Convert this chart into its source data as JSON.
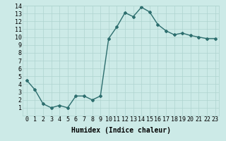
{
  "x": [
    0,
    1,
    2,
    3,
    4,
    5,
    6,
    7,
    8,
    9,
    10,
    11,
    12,
    13,
    14,
    15,
    16,
    17,
    18,
    19,
    20,
    21,
    22,
    23
  ],
  "y": [
    4.5,
    3.3,
    1.5,
    1.0,
    1.3,
    1.0,
    2.5,
    2.5,
    2.0,
    2.5,
    9.8,
    11.3,
    13.1,
    12.6,
    13.8,
    13.2,
    11.6,
    10.8,
    10.3,
    10.5,
    10.2,
    10.0,
    9.8,
    9.8
  ],
  "xlim": [
    -0.5,
    23.5
  ],
  "ylim": [
    0,
    14
  ],
  "yticks": [
    1,
    2,
    3,
    4,
    5,
    6,
    7,
    8,
    9,
    10,
    11,
    12,
    13,
    14
  ],
  "xticks": [
    0,
    1,
    2,
    3,
    4,
    5,
    6,
    7,
    8,
    9,
    10,
    11,
    12,
    13,
    14,
    15,
    16,
    17,
    18,
    19,
    20,
    21,
    22,
    23
  ],
  "xlabel": "Humidex (Indice chaleur)",
  "line_color": "#2d6e6e",
  "marker": "D",
  "marker_size": 2,
  "bg_color": "#cceae7",
  "grid_color": "#aed4d0",
  "line_width": 1.0,
  "xlabel_fontsize": 7,
  "tick_fontsize": 6
}
